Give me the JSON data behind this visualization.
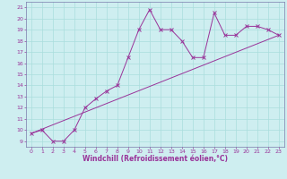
{
  "xlabel": "Windchill (Refroidissement éolien,°C)",
  "xlim": [
    -0.5,
    23.5
  ],
  "ylim": [
    8.5,
    21.5
  ],
  "xticks": [
    0,
    1,
    2,
    3,
    4,
    5,
    6,
    7,
    8,
    9,
    10,
    11,
    12,
    13,
    14,
    15,
    16,
    17,
    18,
    19,
    20,
    21,
    22,
    23
  ],
  "yticks": [
    9,
    10,
    11,
    12,
    13,
    14,
    15,
    16,
    17,
    18,
    19,
    20,
    21
  ],
  "bg_color": "#ceeef0",
  "line_color": "#993399",
  "grid_color": "#aadddd",
  "spine_color": "#7a7aaa",
  "line1_x": [
    0,
    1,
    2,
    3,
    4,
    5,
    6,
    7,
    8,
    9,
    10,
    11,
    12,
    13,
    14,
    15,
    16,
    17,
    18,
    19,
    20,
    21,
    22,
    23
  ],
  "line1_y": [
    9.7,
    10.0,
    9.0,
    9.0,
    10.0,
    12.0,
    12.8,
    13.5,
    14.0,
    16.5,
    19.0,
    20.8,
    19.0,
    19.0,
    18.0,
    16.5,
    16.5,
    20.5,
    18.5,
    18.5,
    19.3,
    19.3,
    19.0,
    18.5
  ],
  "line2_x": [
    0,
    23
  ],
  "line2_y": [
    9.7,
    18.5
  ],
  "tick_fontsize": 4.5,
  "xlabel_fontsize": 5.5
}
